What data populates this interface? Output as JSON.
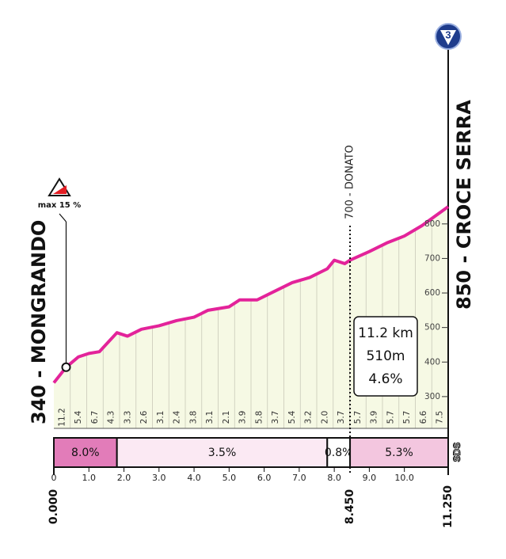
{
  "chart_data": {
    "type": "area",
    "start_label": "340 - MONGRANDO",
    "end_label": "850 - CROCE SERRA",
    "waypoint": {
      "label": "700 - DONATO",
      "x": 8.45
    },
    "max_gradient": {
      "label": "max 15 %",
      "x": 0.35
    },
    "stage_badge": "3",
    "logo": "SDS",
    "summary": [
      "11.2 km",
      "510m",
      "4.6%"
    ],
    "x": [
      0,
      0.35,
      0.7,
      1.0,
      1.3,
      1.8,
      2.1,
      2.5,
      3.0,
      3.5,
      4.0,
      4.4,
      5.0,
      5.3,
      5.8,
      6.3,
      6.8,
      7.3,
      7.8,
      8.0,
      8.3,
      8.45,
      9.0,
      9.5,
      10.0,
      10.5,
      11.25
    ],
    "values": [
      340,
      385,
      415,
      425,
      430,
      485,
      475,
      495,
      505,
      520,
      530,
      550,
      560,
      580,
      580,
      605,
      630,
      645,
      670,
      695,
      685,
      695,
      720,
      745,
      765,
      795,
      850
    ],
    "color": "#e3239a",
    "fill": "#f6f9e4",
    "xlim": [
      0,
      11.25
    ],
    "ylim": [
      208,
      850
    ],
    "yticks": [
      300,
      400,
      500,
      600,
      700,
      800
    ],
    "xticks": [
      0,
      {
        "value": 1,
        "label": "1.0"
      },
      {
        "value": 2,
        "label": "2.0"
      },
      {
        "value": 3,
        "label": "3.0"
      },
      {
        "value": 4,
        "label": "4.0"
      },
      {
        "value": 5,
        "label": "5.0"
      },
      {
        "value": 6,
        "label": "6.0"
      },
      {
        "value": 7,
        "label": "7.0"
      },
      {
        "value": 8,
        "label": "8.0"
      },
      {
        "value": 9,
        "label": "9.0"
      },
      {
        "value": 10,
        "label": "10.0"
      }
    ],
    "km_marks": [
      {
        "value": 0,
        "label": "0.000"
      },
      {
        "value": 8.45,
        "label": "8.450"
      },
      {
        "value": 11.25,
        "label": "11.250"
      }
    ],
    "segment_gradients": [
      11.2,
      5.4,
      6.7,
      4.3,
      3.3,
      2.6,
      3.1,
      2.4,
      3.8,
      3.1,
      2.1,
      3.9,
      5.8,
      3.7,
      5.4,
      3.2,
      {
        "value": 2,
        "label": "2.0"
      },
      3.7,
      5.7,
      3.9,
      5.7,
      5.7,
      6.6,
      7.5
    ],
    "sections": {
      "starts": [
        0,
        1.8,
        7.8,
        8.45
      ],
      "ends": [
        1.8,
        7.8,
        8.45,
        11.25
      ],
      "values": [
        8,
        3.5,
        0.8,
        5.3
      ],
      "value_labels": [
        "8.0%",
        "3.5%",
        "0.8%",
        "5.3%"
      ],
      "colors": [
        "#e27cb9",
        "#fbe9f3",
        "#ffffff",
        "#f3c6df"
      ]
    }
  }
}
